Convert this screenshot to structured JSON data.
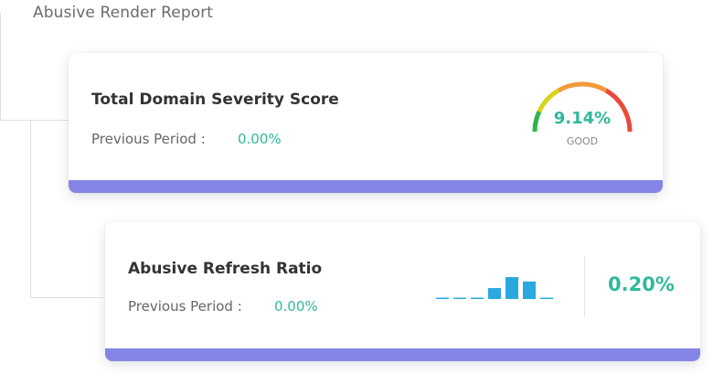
{
  "page_title": "Abusive Render Report",
  "severity_card": {
    "title": "Total Domain Severity Score",
    "previous_label": "Previous Period :",
    "previous_value": "0.00%",
    "gauge": {
      "value_text": "9.14%",
      "status": "GOOD",
      "level": 0.0914,
      "segments": [
        "#2fb34a",
        "#d8d31f",
        "#f29a3a",
        "#ea4a3a"
      ]
    }
  },
  "refresh_card": {
    "title": "Abusive Refresh Ratio",
    "previous_label": "Previous Period :",
    "previous_value": "0.00%",
    "value": "0.20%",
    "sparkline": {
      "values": [
        0,
        0,
        0,
        0.5,
        1,
        0.8,
        0
      ],
      "color": "#2aa9e0"
    }
  },
  "colors": {
    "accent_bar": "#8585e6",
    "positive": "#2fb99a"
  }
}
